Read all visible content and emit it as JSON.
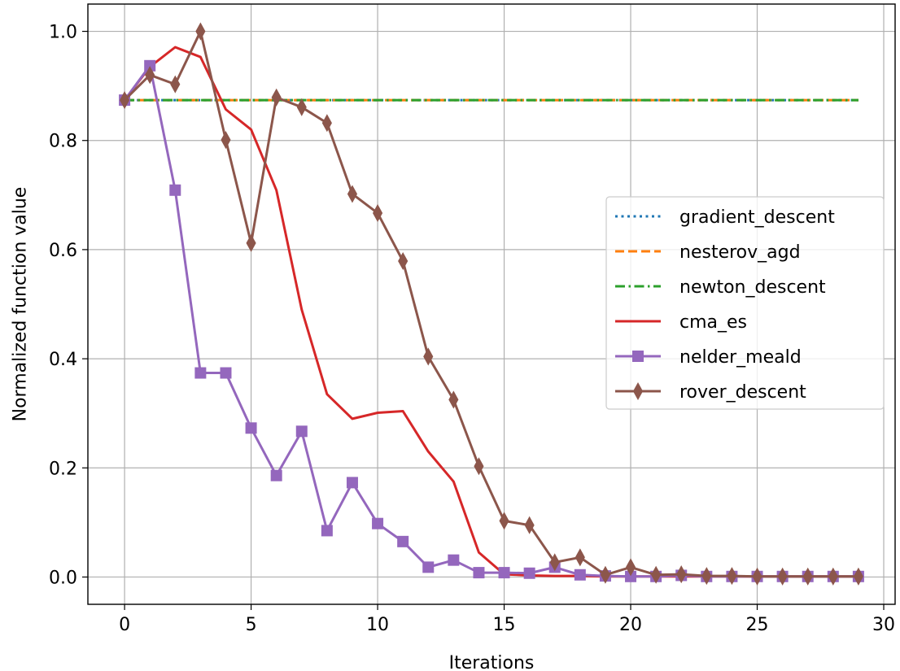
{
  "chart_data": {
    "type": "line",
    "title": "",
    "xlabel": "Iterations",
    "ylabel": "Normalized function value",
    "xlim": [
      -1.45,
      30.45
    ],
    "ylim": [
      -0.05,
      1.05
    ],
    "xticks": [
      0,
      5,
      10,
      15,
      20,
      25,
      30
    ],
    "xtick_labels": [
      "0",
      "5",
      "10",
      "15",
      "20",
      "25",
      "30"
    ],
    "yticks": [
      0.0,
      0.2,
      0.4,
      0.6,
      0.8,
      1.0
    ],
    "ytick_labels": [
      "0.0",
      "0.2",
      "0.4",
      "0.6",
      "0.8",
      "1.0"
    ],
    "grid": true,
    "legend_position": "center-right",
    "x": [
      0,
      1,
      2,
      3,
      4,
      5,
      6,
      7,
      8,
      9,
      10,
      11,
      12,
      13,
      14,
      15,
      16,
      17,
      18,
      19,
      20,
      21,
      22,
      23,
      24,
      25,
      26,
      27,
      28,
      29
    ],
    "series": [
      {
        "name": "gradient_descent",
        "color": "#1f77b4",
        "style": "dotted",
        "marker": "none",
        "values": [
          0.874,
          0.874,
          0.874,
          0.874,
          0.874,
          0.874,
          0.874,
          0.874,
          0.874,
          0.874,
          0.874,
          0.874,
          0.874,
          0.874,
          0.874,
          0.874,
          0.874,
          0.874,
          0.874,
          0.874,
          0.874,
          0.874,
          0.874,
          0.874,
          0.874,
          0.874,
          0.874,
          0.874,
          0.874,
          0.874
        ]
      },
      {
        "name": "nesterov_agd",
        "color": "#ff7f0e",
        "style": "dashed",
        "marker": "none",
        "values": [
          0.874,
          0.874,
          0.874,
          0.874,
          0.874,
          0.874,
          0.874,
          0.874,
          0.874,
          0.874,
          0.874,
          0.874,
          0.874,
          0.874,
          0.874,
          0.874,
          0.874,
          0.874,
          0.874,
          0.874,
          0.874,
          0.874,
          0.874,
          0.874,
          0.874,
          0.874,
          0.874,
          0.874,
          0.874,
          0.874
        ]
      },
      {
        "name": "newton_descent",
        "color": "#2ca02c",
        "style": "dashdot",
        "marker": "none",
        "values": [
          0.874,
          0.874,
          0.874,
          0.874,
          0.874,
          0.874,
          0.874,
          0.874,
          0.874,
          0.874,
          0.874,
          0.874,
          0.874,
          0.874,
          0.874,
          0.874,
          0.874,
          0.874,
          0.874,
          0.874,
          0.874,
          0.874,
          0.874,
          0.874,
          0.874,
          0.874,
          0.874,
          0.874,
          0.874,
          0.874
        ]
      },
      {
        "name": "cma_es",
        "color": "#d62728",
        "style": "solid",
        "marker": "none",
        "values": [
          0.874,
          0.935,
          0.971,
          0.953,
          0.857,
          0.82,
          0.709,
          0.49,
          0.335,
          0.29,
          0.301,
          0.304,
          0.23,
          0.175,
          0.045,
          0.005,
          0.003,
          0.002,
          0.002,
          0.001,
          0.001,
          0.001,
          0.001,
          0.001,
          0.001,
          0.001,
          0.001,
          0.001,
          0.001,
          0.001
        ]
      },
      {
        "name": "nelder_meald",
        "color": "#9467bd",
        "style": "solid",
        "marker": "square",
        "values": [
          0.874,
          0.937,
          0.709,
          0.374,
          0.374,
          0.273,
          0.186,
          0.267,
          0.085,
          0.173,
          0.098,
          0.065,
          0.018,
          0.031,
          0.008,
          0.008,
          0.007,
          0.018,
          0.004,
          0.002,
          0.001,
          0.001,
          0.003,
          0.001,
          0.001,
          0.001,
          0.001,
          0.001,
          0.001,
          0.001
        ]
      },
      {
        "name": "rover_descent",
        "color": "#8c564b",
        "style": "solid",
        "marker": "thin_diamond",
        "values": [
          0.874,
          0.92,
          0.903,
          1.0,
          0.801,
          0.612,
          0.879,
          0.861,
          0.832,
          0.702,
          0.667,
          0.579,
          0.404,
          0.325,
          0.203,
          0.103,
          0.095,
          0.027,
          0.036,
          0.004,
          0.018,
          0.004,
          0.005,
          0.002,
          0.002,
          0.001,
          0.001,
          0.001,
          0.001,
          0.001
        ]
      }
    ]
  }
}
